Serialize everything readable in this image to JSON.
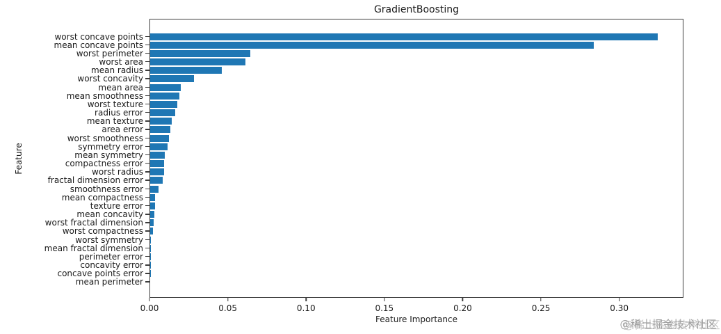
{
  "figure": {
    "title": "GradientBoosting",
    "xlabel": "Feature Importance",
    "ylabel": "Feature"
  },
  "watermark": {
    "text": "@稀土掘金技术社区"
  },
  "chart_data": {
    "type": "bar",
    "orientation": "horizontal",
    "title": "GradientBoosting",
    "xlabel": "Feature Importance",
    "ylabel": "Feature",
    "bar_color": "#1f77b4",
    "grid": false,
    "legend": null,
    "xlim": [
      0,
      0.341
    ],
    "xticks": [
      "0.00",
      "0.05",
      "0.10",
      "0.15",
      "0.20",
      "0.25",
      "0.30"
    ],
    "xtick_values": [
      0,
      0.05,
      0.1,
      0.15,
      0.2,
      0.25,
      0.3
    ],
    "categories": [
      "worst concave points",
      "mean concave points",
      "worst perimeter",
      "worst area",
      "mean radius",
      "worst concavity",
      "mean area",
      "mean smoothness",
      "worst texture",
      "radius error",
      "mean texture",
      "area error",
      "worst smoothness",
      "symmetry error",
      "mean symmetry",
      "compactness error",
      "worst radius",
      "fractal dimension error",
      "smoothness error",
      "mean compactness",
      "texture error",
      "mean concavity",
      "worst fractal dimension",
      "worst compactness",
      "worst symmetry",
      "mean fractal dimension",
      "perimeter error",
      "concavity error",
      "concave points error",
      "mean perimeter"
    ],
    "values": [
      0.325,
      0.284,
      0.064,
      0.061,
      0.046,
      0.028,
      0.0195,
      0.0185,
      0.0172,
      0.016,
      0.0138,
      0.0128,
      0.0119,
      0.011,
      0.0095,
      0.0091,
      0.0088,
      0.0082,
      0.0052,
      0.0033,
      0.003,
      0.0027,
      0.0023,
      0.002,
      0.0005,
      0.0003,
      0.0002,
      0.0002,
      0.0001,
      0.0
    ]
  }
}
